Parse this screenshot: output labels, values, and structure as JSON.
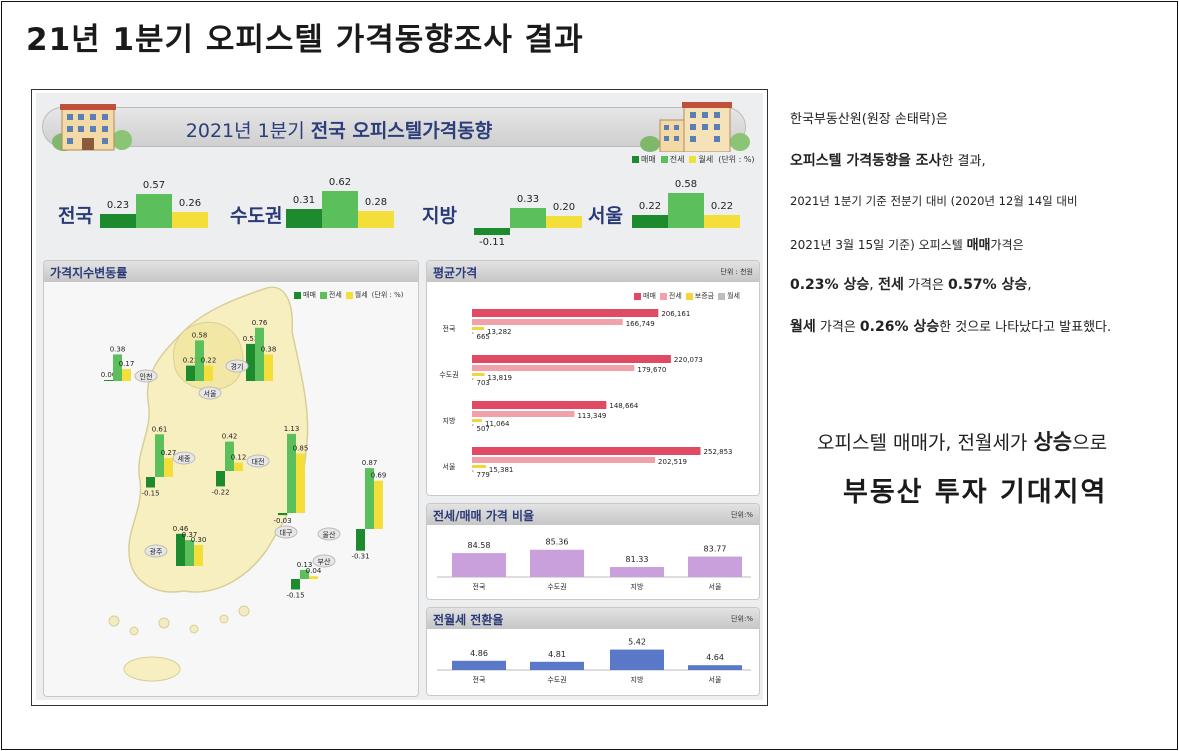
{
  "page": {
    "title": "21년 1분기 오피스텔 가격동향조사 결과"
  },
  "colors": {
    "sale": "#1e8a2e",
    "jeonse": "#5bbf5b",
    "wolse": "#f4df3a",
    "avg_sale": "#e04a62",
    "avg_jeonse": "#f2a0aa",
    "avg_deposit": "#f6d23c",
    "avg_wolse": "#bdbdbd",
    "ratio": "#c9a0dc",
    "conversion": "#5a78c8",
    "title_blue": "#2a3a78"
  },
  "banner": {
    "title_plain": "2021년 1분기 ",
    "title_bold": "전국 오피스텔가격동향"
  },
  "legend_top": {
    "sale": "매매",
    "jeonse": "전세",
    "wolse": "월세",
    "unit": "(단위 : %)"
  },
  "chart_data": [
    {
      "type": "bar",
      "id": "regional_change",
      "categories": [
        "전국",
        "수도권",
        "지방",
        "서울"
      ],
      "series": [
        {
          "name": "매매",
          "values": [
            0.23,
            0.31,
            -0.11,
            0.22
          ]
        },
        {
          "name": "전세",
          "values": [
            0.57,
            0.62,
            0.33,
            0.58
          ]
        },
        {
          "name": "월세",
          "values": [
            0.26,
            0.28,
            0.2,
            0.22
          ]
        }
      ],
      "value_labels": [
        [
          "0.23",
          "0.57",
          "0.26"
        ],
        [
          "0.31",
          "0.62",
          "0.28"
        ],
        [
          "-0.11",
          "0.33",
          "0.20"
        ],
        [
          "0.22",
          "0.58",
          "0.22"
        ]
      ],
      "unit": "(단위 : %)"
    },
    {
      "type": "bar",
      "id": "map_change",
      "title": "가격지수변동률",
      "legend": [
        "매매",
        "전세",
        "월세"
      ],
      "unit": "(단위 : %)",
      "categories": [
        "인천",
        "서울",
        "경기",
        "세종",
        "대전",
        "대구",
        "울산",
        "광주",
        "부산"
      ],
      "series": [
        {
          "name": "매매",
          "values": [
            0.0,
            0.22,
            0.53,
            -0.15,
            -0.22,
            -0.03,
            -0.31,
            0.46,
            -0.15
          ]
        },
        {
          "name": "전세",
          "values": [
            0.38,
            0.58,
            0.76,
            0.61,
            0.42,
            1.13,
            0.87,
            0.37,
            0.13
          ]
        },
        {
          "name": "월세",
          "values": [
            0.17,
            0.22,
            0.38,
            0.27,
            0.12,
            0.85,
            0.69,
            0.3,
            0.04
          ]
        }
      ],
      "value_labels": [
        [
          "0.00",
          "0.38",
          "0.17"
        ],
        [
          "0.22",
          "0.58",
          "0.22"
        ],
        [
          "0.53",
          "0.76",
          "0.38"
        ],
        [
          "-0.15",
          "0.61",
          "0.27"
        ],
        [
          "-0.22",
          "0.42",
          "0.12"
        ],
        [
          "-0.03",
          "1.13",
          "0.85"
        ],
        [
          "-0.31",
          "0.87",
          "0.69"
        ],
        [
          "0.46",
          "0.37",
          "0.30"
        ],
        [
          "-0.15",
          "0.13",
          "0.04"
        ]
      ]
    },
    {
      "type": "bar",
      "id": "average_price",
      "orientation": "horizontal",
      "title": "평균가격",
      "unit": "단위 : 천원",
      "legend": [
        "매매",
        "전세",
        "보증금",
        "월세"
      ],
      "categories": [
        "전국",
        "수도권",
        "지방",
        "서울"
      ],
      "series": [
        {
          "name": "매매",
          "values": [
            206161,
            220073,
            148664,
            252853
          ]
        },
        {
          "name": "전세",
          "values": [
            166749,
            179670,
            113349,
            202519
          ]
        },
        {
          "name": "보증금",
          "values": [
            13282,
            13819,
            11064,
            15381
          ]
        },
        {
          "name": "월세",
          "values": [
            665,
            703,
            507,
            779
          ]
        }
      ],
      "value_labels": [
        [
          "206,161",
          "166,749",
          "13,282",
          "665"
        ],
        [
          "220,073",
          "179,670",
          "13,819",
          "703"
        ],
        [
          "148,664",
          "113,349",
          "11,064",
          "507"
        ],
        [
          "252,853",
          "202,519",
          "15,381",
          "779"
        ]
      ]
    },
    {
      "type": "bar",
      "id": "jeonse_sale_ratio",
      "title": "전세/매매 가격 비율",
      "unit": "단위:%",
      "categories": [
        "전국",
        "수도권",
        "지방",
        "서울"
      ],
      "values": [
        84.58,
        85.36,
        81.33,
        83.77
      ],
      "value_labels": [
        "84.58",
        "85.36",
        "81.33",
        "83.77"
      ]
    },
    {
      "type": "bar",
      "id": "conversion_rate",
      "title": "전월세 전환율",
      "unit": "단위:%",
      "categories": [
        "전국",
        "수도권",
        "지방",
        "서울"
      ],
      "values": [
        4.86,
        4.81,
        5.42,
        4.64
      ],
      "value_labels": [
        "4.86",
        "4.81",
        "5.42",
        "4.64"
      ]
    }
  ],
  "summary": {
    "l1": "한국부동산원(원장 손태락)은",
    "l2_bold": "오피스텔 가격동향을 조사",
    "l2_rest": "한 결과,",
    "l3": "2021년 1분기 기준 전분기 대비 (2020년 12월 14일 대비",
    "l4_pre": "2021년 3월 15일 기준) 오피스텔 ",
    "l4_bold": "매매",
    "l4_post": "가격은",
    "l5_b1": "0.23% 상승",
    "l5_t1": ", ",
    "l5_b2": "전세",
    "l5_t2": " 가격은 ",
    "l5_b3": "0.57% 상승",
    "l5_t3": ",",
    "l6_b1": "월세",
    "l6_t1": " 가격은 ",
    "l6_b2": "0.26% 상승",
    "l6_t2": "한 것으로 나타났다고 발표했다."
  },
  "tagline": {
    "pre": "오피스텔 매매가, 전월세가 ",
    "bold": "상승",
    "post": "으로",
    "line2": "부동산 투자 기대지역"
  }
}
